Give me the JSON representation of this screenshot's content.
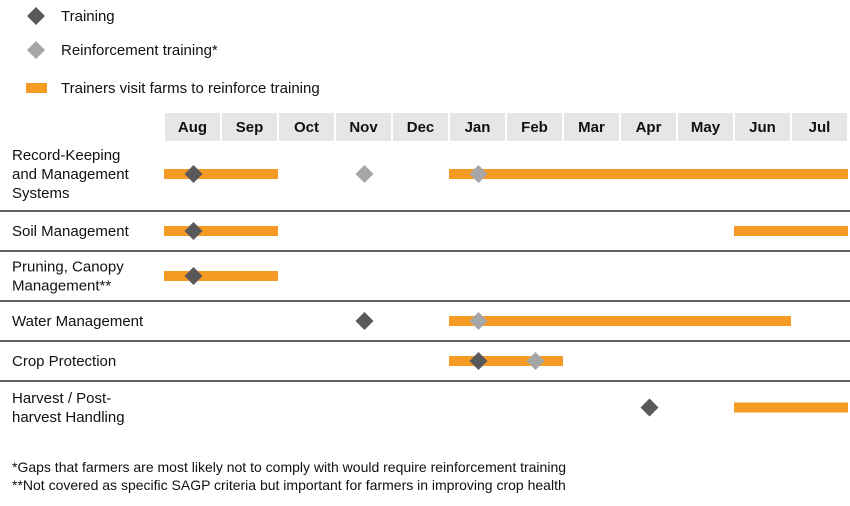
{
  "legend": [
    {
      "label": "Training",
      "marker": "diamond",
      "color": "#595959"
    },
    {
      "label": "Reinforcement training*",
      "marker": "diamond",
      "color": "#a6a6a6"
    },
    {
      "label": "Trainers visit farms to reinforce training",
      "marker": "bar",
      "color": "#f59a23"
    }
  ],
  "months": [
    "Aug",
    "Sep",
    "Oct",
    "Nov",
    "Dec",
    "Jan",
    "Feb",
    "Mar",
    "Apr",
    "May",
    "Jun",
    "Jul"
  ],
  "colors": {
    "bar": "#f59a23",
    "training": "#595959",
    "reinforcement": "#a6a6a6",
    "header_bg": "#e6e6e6",
    "divider": "#000000"
  },
  "chart_data": {
    "type": "gantt",
    "categories": [
      "Record-Keeping and Management Systems",
      "Soil Management",
      "Pruning, Canopy Management**",
      "Water Management",
      "Crop Protection",
      "Harvest / Post-harvest Handling"
    ],
    "rows": [
      {
        "label": [
          "Record-Keeping",
          "and Management",
          "Systems"
        ],
        "bars": [
          {
            "start": 0,
            "end": 2
          },
          {
            "start": 5,
            "end": 12
          }
        ],
        "training": [
          0.5
        ],
        "reinforcement": [
          3.5,
          5.5
        ]
      },
      {
        "label": [
          "Soil Management"
        ],
        "bars": [
          {
            "start": 0,
            "end": 2
          },
          {
            "start": 10,
            "end": 12
          }
        ],
        "training": [
          0.5
        ],
        "reinforcement": []
      },
      {
        "label": [
          "Pruning, Canopy",
          "Management**"
        ],
        "bars": [
          {
            "start": 0,
            "end": 2
          }
        ],
        "training": [
          0.5
        ],
        "reinforcement": []
      },
      {
        "label": [
          "Water Management"
        ],
        "bars": [
          {
            "start": 5,
            "end": 11
          }
        ],
        "training": [
          3.5
        ],
        "reinforcement": [
          5.5
        ]
      },
      {
        "label": [
          "Crop Protection"
        ],
        "bars": [
          {
            "start": 5,
            "end": 7
          }
        ],
        "training": [
          5.5
        ],
        "reinforcement": [
          6.5
        ]
      },
      {
        "label": [
          "Harvest / Post-",
          "harvest Handling"
        ],
        "bars": [
          {
            "start": 10,
            "end": 12
          }
        ],
        "training": [
          8.5
        ],
        "reinforcement": []
      }
    ]
  },
  "footnotes": [
    "*Gaps that farmers are most likely not to comply with would require reinforcement training",
    "**Not covered as specific SAGP criteria but important for farmers in improving crop health"
  ]
}
